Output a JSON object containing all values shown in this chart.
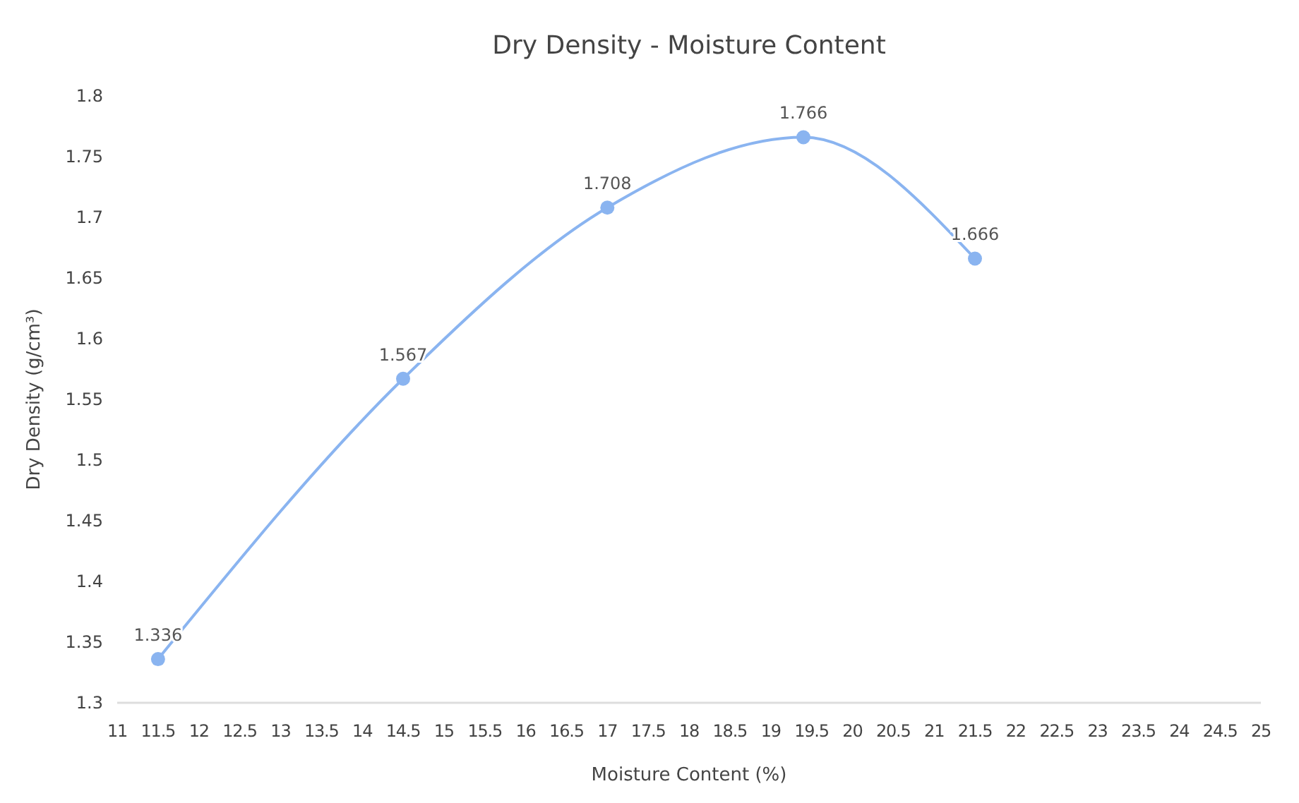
{
  "chart_data": {
    "type": "line",
    "title": "Dry Density - Moisture Content",
    "xlabel": "Moisture Content (%)",
    "ylabel": "Dry Density (g/cm³)",
    "x": [
      11.5,
      14.5,
      17,
      19.4,
      21.5
    ],
    "series": [
      {
        "color": "#8ab4f0",
        "values": [
          1.336,
          1.567,
          1.708,
          1.766,
          1.666
        ]
      }
    ],
    "xlim": [
      11,
      25
    ],
    "xticks": [
      11,
      11.5,
      12,
      12.5,
      13,
      13.5,
      14,
      14.5,
      15,
      15.5,
      16,
      16.5,
      17,
      17.5,
      18,
      18.5,
      19,
      19.5,
      20,
      20.5,
      21,
      21.5,
      22,
      22.5,
      23,
      23.5,
      24,
      24.5,
      25
    ],
    "ylim": [
      1.3,
      1.8
    ],
    "yticks": [
      1.3,
      1.35,
      1.4,
      1.45,
      1.5,
      1.55,
      1.6,
      1.65,
      1.7,
      1.75,
      1.8
    ],
    "data_labels": true,
    "marker": "circle",
    "line_style": "solid",
    "grid": false
  }
}
